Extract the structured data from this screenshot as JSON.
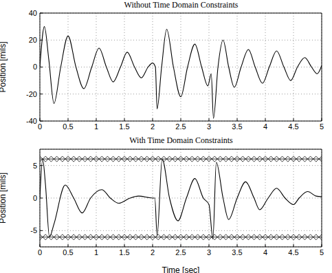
{
  "chart_data": [
    {
      "type": "line",
      "title": "Without Time Domain Constraints",
      "ylabel": "Position [mils]",
      "xlim": [
        0,
        5
      ],
      "xticks": [
        0,
        0.5,
        1,
        1.5,
        2,
        2.5,
        3,
        3.5,
        4,
        4.5,
        5
      ],
      "ylim": [
        -40,
        40
      ],
      "yticks": [
        -40,
        -20,
        0,
        20,
        40
      ],
      "grid": true,
      "series": [
        {
          "color": "#000000",
          "line_style": "solid",
          "x": [
            0,
            0.08,
            0.16,
            0.25,
            0.37,
            0.5,
            0.64,
            0.78,
            0.92,
            1.05,
            1.18,
            1.3,
            1.43,
            1.55,
            1.68,
            1.8,
            1.92,
            2.0,
            2.05,
            2.08,
            2.16,
            2.25,
            2.37,
            2.5,
            2.62,
            2.75,
            2.87,
            2.98,
            3.04,
            3.08,
            3.16,
            3.25,
            3.35,
            3.45,
            3.57,
            3.7,
            3.82,
            3.95,
            4.07,
            4.2,
            4.33,
            4.45,
            4.57,
            4.7,
            4.82,
            4.92,
            5.0
          ],
          "values": [
            0,
            30,
            5,
            -27,
            0,
            23,
            0,
            -16,
            0,
            14,
            0,
            -11,
            0,
            11,
            0,
            -8,
            0,
            3,
            0,
            -31,
            0,
            28,
            0,
            -22,
            0,
            17,
            0,
            -14,
            -5,
            -38,
            0,
            20,
            0,
            -15,
            0,
            13,
            0,
            -12,
            0,
            12,
            0,
            -10,
            0,
            7,
            0,
            -5,
            1
          ]
        }
      ]
    },
    {
      "type": "line",
      "title": "With Time Domain Constraints",
      "xlabel": "Time [sec]",
      "ylabel": "Position [mils]",
      "xlim": [
        0,
        5
      ],
      "xticks": [
        0,
        0.5,
        1,
        1.5,
        2,
        2.5,
        3,
        3.5,
        4,
        4.5,
        5
      ],
      "ylim": [
        -7.5,
        7.5
      ],
      "yticks": [
        -5,
        0,
        5
      ],
      "grid": true,
      "series": [
        {
          "color": "#000000",
          "line_style": "solid",
          "x": [
            0,
            0.05,
            0.1,
            0.17,
            0.25,
            0.45,
            0.6,
            0.75,
            0.9,
            1.1,
            1.25,
            1.4,
            1.6,
            1.75,
            2.0,
            2.04,
            2.08,
            2.17,
            2.3,
            2.45,
            2.6,
            2.75,
            2.9,
            3.0,
            3.07,
            3.13,
            3.25,
            3.35,
            3.5,
            3.65,
            3.8,
            3.9,
            4.05,
            4.2,
            4.35,
            4.5,
            4.6,
            4.75,
            4.9,
            5.0
          ],
          "values": [
            0,
            6,
            2,
            -6,
            -4,
            2,
            0,
            -2.3,
            0,
            1.3,
            0,
            -0.8,
            0,
            0.3,
            0,
            0,
            -5.8,
            6,
            0,
            -3.5,
            0,
            3,
            0,
            -1,
            -6.3,
            5.5,
            0,
            -3.3,
            0,
            2.5,
            0,
            -1.8,
            0,
            1.5,
            0,
            -1,
            0,
            1,
            0.3,
            0.2
          ]
        },
        {
          "color": "#000000",
          "line_style": "solid",
          "marker": "diamond",
          "x": [
            0,
            0.1,
            0.2,
            0.3,
            0.4,
            0.5,
            0.6,
            0.7,
            0.8,
            0.9,
            1,
            1.1,
            1.2,
            1.3,
            1.4,
            1.5,
            1.6,
            1.7,
            1.8,
            1.9,
            2,
            2.1,
            2.2,
            2.3,
            2.4,
            2.5,
            2.6,
            2.7,
            2.8,
            2.9,
            3,
            3.1,
            3.2,
            3.3,
            3.4,
            3.5,
            3.6,
            3.7,
            3.8,
            3.9,
            4,
            4.1,
            4.2,
            4.3,
            4.4,
            4.5,
            4.6,
            4.7,
            4.8,
            4.9,
            5
          ],
          "values": [
            6,
            6,
            6,
            6,
            6,
            6,
            6,
            6,
            6,
            6,
            6,
            6,
            6,
            6,
            6,
            6,
            6,
            6,
            6,
            6,
            6,
            6,
            6,
            6,
            6,
            6,
            6,
            6,
            6,
            6,
            6,
            6,
            6,
            6,
            6,
            6,
            6,
            6,
            6,
            6,
            6,
            6,
            6,
            6,
            6,
            6,
            6,
            6,
            6,
            6,
            6
          ]
        },
        {
          "color": "#000000",
          "line_style": "solid",
          "marker": "diamond",
          "x": [
            0,
            0.1,
            0.2,
            0.3,
            0.4,
            0.5,
            0.6,
            0.7,
            0.8,
            0.9,
            1,
            1.1,
            1.2,
            1.3,
            1.4,
            1.5,
            1.6,
            1.7,
            1.8,
            1.9,
            2,
            2.1,
            2.2,
            2.3,
            2.4,
            2.5,
            2.6,
            2.7,
            2.8,
            2.9,
            3,
            3.1,
            3.2,
            3.3,
            3.4,
            3.5,
            3.6,
            3.7,
            3.8,
            3.9,
            4,
            4.1,
            4.2,
            4.3,
            4.4,
            4.5,
            4.6,
            4.7,
            4.8,
            4.9,
            5
          ],
          "values": [
            -6,
            -6,
            -6,
            -6,
            -6,
            -6,
            -6,
            -6,
            -6,
            -6,
            -6,
            -6,
            -6,
            -6,
            -6,
            -6,
            -6,
            -6,
            -6,
            -6,
            -6,
            -6,
            -6,
            -6,
            -6,
            -6,
            -6,
            -6,
            -6,
            -6,
            -6,
            -6,
            -6,
            -6,
            -6,
            -6,
            -6,
            -6,
            -6,
            -6,
            -6,
            -6,
            -6,
            -6,
            -6,
            -6,
            -6,
            -6,
            -6,
            -6,
            -6
          ]
        }
      ]
    }
  ]
}
